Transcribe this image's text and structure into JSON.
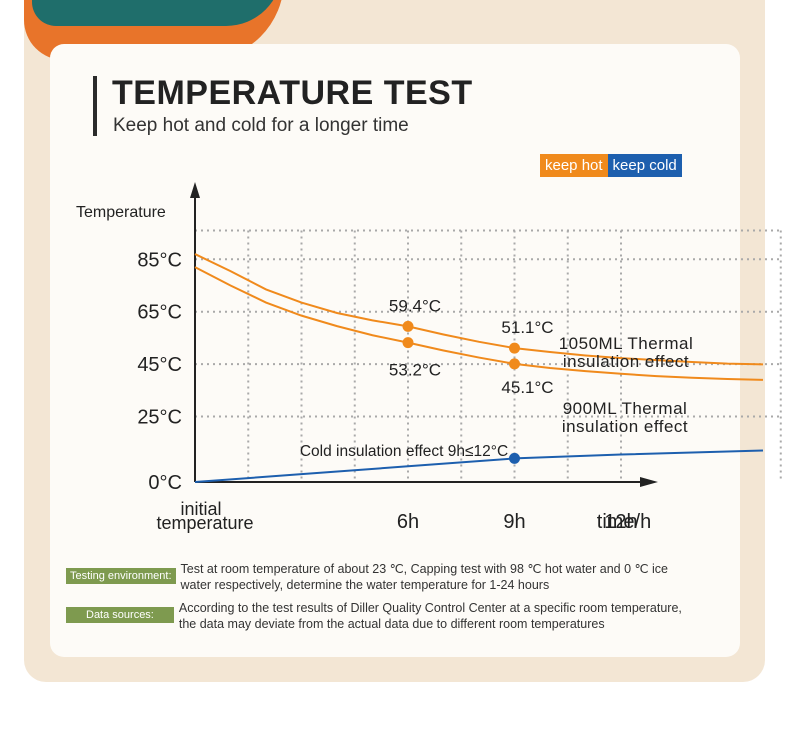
{
  "header": {
    "title": "TEMPERATURE TEST",
    "subtitle": "Keep hot and cold for a longer time"
  },
  "legend": {
    "hot": "keep hot",
    "cold": "keep cold"
  },
  "colors": {
    "hot": "#f08a1c",
    "cold": "#1d5fae",
    "tag": "#7e9a4f"
  },
  "chart_data": {
    "type": "line",
    "ylabel": "Temperature",
    "xlabel": "time/h",
    "x_ticks": [
      {
        "x": 0,
        "label_lines": [
          "initial",
          "temperature"
        ]
      },
      {
        "x": 6,
        "label_lines": [
          "6h"
        ]
      },
      {
        "x": 9,
        "label_lines": [
          "9h"
        ]
      },
      {
        "x": 12,
        "label_lines": [
          "12h"
        ]
      }
    ],
    "y_ticks": [
      {
        "y": 0,
        "label": "0°C"
      },
      {
        "y": 25,
        "label": "25°C"
      },
      {
        "y": 45,
        "label": "45°C"
      },
      {
        "y": 65,
        "label": "65°C"
      },
      {
        "y": 85,
        "label": "85°C"
      }
    ],
    "xlim": [
      0,
      17
    ],
    "ylim": [
      0,
      98
    ],
    "grid": true,
    "series": [
      {
        "name": "1050ML Thermal insulation effect",
        "name_lines": [
          "1050ML Thermal",
          "insulation effect"
        ],
        "color": "#f08a1c",
        "x": [
          0,
          1,
          2,
          3,
          4,
          5,
          6,
          7,
          8,
          9,
          10,
          11,
          12,
          13,
          14,
          15,
          16
        ],
        "y": [
          87,
          80.5,
          73.5,
          68.5,
          64.5,
          61.7,
          59.4,
          56.3,
          53.5,
          51.1,
          49.6,
          48.3,
          47.3,
          46.5,
          45.8,
          45.2,
          44.9
        ],
        "labeled_points": [
          {
            "x": 6,
            "y": 59.4,
            "label": "59.4°C"
          },
          {
            "x": 9,
            "y": 51.1,
            "label": "51.1°C"
          }
        ]
      },
      {
        "name": "900ML Thermal insulation effect",
        "name_lines": [
          "900ML Thermal",
          "insulation effect"
        ],
        "color": "#f08a1c",
        "x": [
          0,
          1,
          2,
          3,
          4,
          5,
          6,
          7,
          8,
          9,
          10,
          11,
          12,
          13,
          14,
          15,
          16
        ],
        "y": [
          82,
          75,
          68.5,
          63.5,
          59.5,
          56,
          53.2,
          50.2,
          47.5,
          45.1,
          43.5,
          42.3,
          41.3,
          40.4,
          39.8,
          39.3,
          39
        ],
        "labeled_points": [
          {
            "x": 6,
            "y": 53.2,
            "label": "53.2°C"
          },
          {
            "x": 9,
            "y": 45.1,
            "label": "45.1°C"
          }
        ]
      },
      {
        "name": "Cold insulation effect 9h≤12°C",
        "name_lines": [
          "Cold insulation effect 9h≤12°C"
        ],
        "color": "#1d5fae",
        "x": [
          0,
          3,
          6,
          9,
          12,
          16
        ],
        "y": [
          0,
          3,
          6,
          9,
          10.5,
          12
        ],
        "labeled_points": [
          {
            "x": 9,
            "y": 9,
            "label": ""
          }
        ]
      }
    ]
  },
  "notes": [
    {
      "tag": "Testing environment:",
      "lines": [
        "Test at room temperature of about 23 ℃, Capping test with 98 ℃ hot water and 0 ℃ ice",
        "water respectively, determine the water temperature for 1-24 hours"
      ]
    },
    {
      "tag": "Data sources:",
      "lines": [
        "According to the test results of Diller Quality Control Center at a specific room temperature,",
        "the data may deviate from the actual data due to different room temperatures"
      ]
    }
  ]
}
